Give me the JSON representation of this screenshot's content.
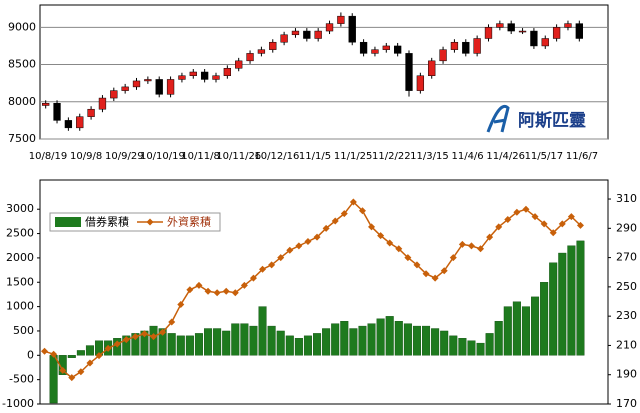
{
  "chart_data": [
    {
      "type": "candlestick",
      "xtick_labels": [
        "10/8/19",
        "10/9/8",
        "10/9/29",
        "10/10/19",
        "10/11/8",
        "10/11/26",
        "10/12/16",
        "11/1/5",
        "11/1/25",
        "11/2/22",
        "11/3/15",
        "11/4/6",
        "11/4/26",
        "11/5/17",
        "11/6/7"
      ],
      "open": [
        7950,
        7980,
        7750,
        7650,
        7800,
        7900,
        8050,
        8150,
        8200,
        8280,
        8300,
        8100,
        8300,
        8350,
        8400,
        8300,
        8350,
        8450,
        8550,
        8650,
        8700,
        8800,
        8900,
        8950,
        8850,
        8950,
        9050,
        9150,
        8800,
        8650,
        8700,
        8750,
        8650,
        8150,
        8350,
        8550,
        8700,
        8800,
        8650,
        8850,
        9000,
        9050,
        8950,
        8950,
        8750,
        8850,
        9000,
        9050
      ],
      "high": [
        8020,
        8020,
        7790,
        7840,
        7940,
        8090,
        8190,
        8240,
        8320,
        8340,
        8340,
        8340,
        8390,
        8440,
        8440,
        8390,
        8490,
        8590,
        8690,
        8740,
        8840,
        8940,
        8990,
        8990,
        8990,
        9090,
        9200,
        9190,
        8840,
        8740,
        8790,
        8790,
        8690,
        8390,
        8590,
        8740,
        8840,
        8840,
        8890,
        9040,
        9090,
        9090,
        8990,
        8990,
        8890,
        9040,
        9090,
        9090
      ],
      "low": [
        7910,
        7710,
        7610,
        7610,
        7760,
        7860,
        8010,
        8110,
        8160,
        8240,
        8060,
        8060,
        8260,
        8310,
        8260,
        8260,
        8310,
        8410,
        8510,
        8610,
        8660,
        8760,
        8860,
        8810,
        8810,
        8910,
        9010,
        8760,
        8610,
        8610,
        8660,
        8610,
        8070,
        8110,
        8310,
        8510,
        8660,
        8610,
        8610,
        8810,
        8960,
        8910,
        8910,
        8710,
        8710,
        8810,
        8960,
        8810
      ],
      "close": [
        7980,
        7750,
        7650,
        7800,
        7900,
        8050,
        8150,
        8200,
        8280,
        8300,
        8100,
        8300,
        8350,
        8400,
        8300,
        8350,
        8450,
        8550,
        8650,
        8700,
        8800,
        8900,
        8950,
        8850,
        8950,
        9050,
        9150,
        8800,
        8650,
        8700,
        8750,
        8650,
        8150,
        8350,
        8550,
        8700,
        8800,
        8650,
        8850,
        9000,
        9050,
        8950,
        8950,
        8750,
        8850,
        9000,
        9050,
        8850
      ],
      "ylim": [
        7500,
        9300
      ],
      "yticks": [
        7500,
        8000,
        8500,
        9000
      ],
      "grid": true,
      "up_color": "#e0201c",
      "down_color": "#000000",
      "watermark": "阿斯匹靈"
    },
    {
      "type": "bar_line",
      "series": [
        {
          "name": "借券累積",
          "type": "bar",
          "color": "#1e7a1e",
          "values": [
            null,
            -980,
            -400,
            -50,
            100,
            200,
            300,
            300,
            350,
            400,
            450,
            500,
            600,
            550,
            450,
            400,
            400,
            450,
            550,
            550,
            500,
            650,
            650,
            600,
            1000,
            600,
            500,
            400,
            350,
            400,
            450,
            550,
            650,
            700,
            550,
            600,
            650,
            750,
            800,
            700,
            650,
            600,
            600,
            550,
            500,
            400,
            350,
            300,
            250,
            450,
            700,
            1000,
            1100,
            1000,
            1200,
            1500,
            1900,
            2100,
            2250,
            2350
          ]
        },
        {
          "name": "外資累積",
          "type": "line",
          "axis": "y2",
          "color": "#c8600a",
          "values": [
            206,
            204,
            193,
            188,
            192,
            198,
            203,
            208,
            211,
            214,
            216,
            218,
            216,
            219,
            226,
            238,
            248,
            251,
            247,
            246,
            247,
            246,
            251,
            256,
            262,
            265,
            270,
            275,
            278,
            281,
            284,
            290,
            295,
            300,
            308,
            302,
            291,
            285,
            280,
            276,
            270,
            265,
            259,
            256,
            261,
            270,
            279,
            278,
            276,
            284,
            291,
            296,
            301,
            303,
            298,
            293,
            287,
            293,
            298,
            292
          ]
        }
      ],
      "ylim": [
        -1000,
        3600
      ],
      "yticks": [
        -1000,
        -500,
        0,
        500,
        1000,
        1500,
        2000,
        2500,
        3000
      ],
      "y2lim": [
        170,
        323
      ],
      "y2ticks": [
        170,
        190,
        210,
        230,
        250,
        270,
        290,
        310
      ],
      "legend": "top-left"
    }
  ]
}
